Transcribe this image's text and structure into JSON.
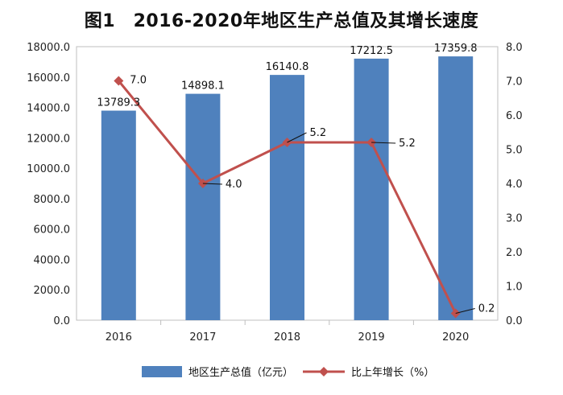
{
  "chart_data": {
    "type": "bar",
    "title": "图1　2016-2020年地区生产总值及其增长速度",
    "categories": [
      "2016",
      "2017",
      "2018",
      "2019",
      "2020"
    ],
    "series": [
      {
        "name": "地区生产总值（亿元）",
        "type": "bar",
        "axis": "left",
        "values": [
          13789.3,
          14898.1,
          16140.8,
          17212.5,
          17359.8
        ],
        "labels": [
          "13789.3",
          "14898.1",
          "16140.8",
          "17212.5",
          "17359.8"
        ],
        "color": "#4f81bd"
      },
      {
        "name": "比上年增长（%）",
        "type": "line",
        "axis": "right",
        "values": [
          7.0,
          4.0,
          5.2,
          5.2,
          0.2
        ],
        "labels": [
          "7.0",
          "4.0",
          "5.2",
          "5.2",
          "0.2"
        ],
        "color": "#c0504d"
      }
    ],
    "y_left": {
      "min": 0,
      "max": 18000,
      "ticks": [
        "0.0",
        "2000.0",
        "4000.0",
        "6000.0",
        "8000.0",
        "10000.0",
        "12000.0",
        "14000.0",
        "16000.0",
        "18000.0"
      ]
    },
    "y_right": {
      "min": 0,
      "max": 8,
      "ticks": [
        "0.0",
        "1.0",
        "2.0",
        "3.0",
        "4.0",
        "5.0",
        "6.0",
        "7.0",
        "8.0"
      ]
    },
    "legend_position": "bottom-center",
    "xlabel": "",
    "ylabel": ""
  }
}
